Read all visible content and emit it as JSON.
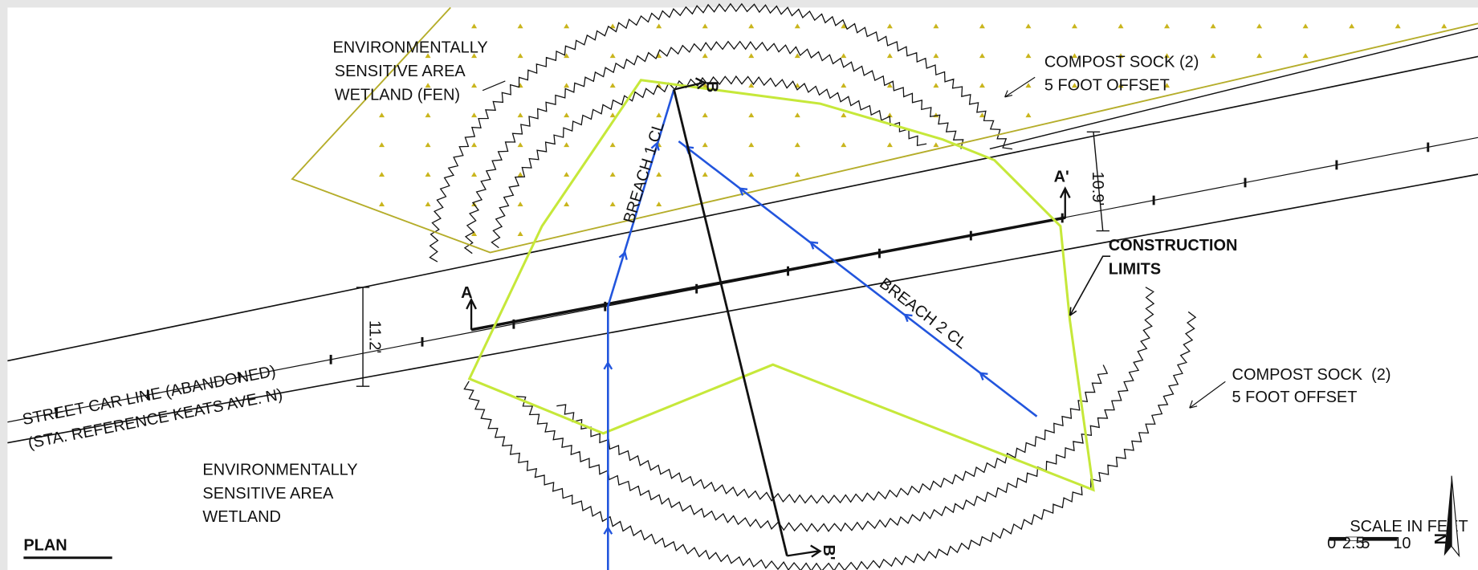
{
  "labels": {
    "fen_area": [
      "ENVIRONMENTALLY",
      "SENSITIVE AREA",
      "WETLAND (FEN)"
    ],
    "compost_sock_top": [
      "COMPOST SOCK (2)",
      "5 FOOT OFFSET"
    ],
    "construction_limits": [
      "CONSTRUCTION",
      "LIMITS"
    ],
    "compost_sock_right": [
      "COMPOST SOCK  (2)",
      "5 FOOT OFFSET"
    ],
    "street_car_line": [
      "STREET CAR LINE (ABANDONED)",
      "(STA. REFERENCE KEATS AVE. N)"
    ],
    "wetland_area": [
      "ENVIRONMENTALLY",
      "SENSITIVE AREA",
      "WETLAND"
    ],
    "breach_1": "BREACH 1 CL",
    "breach_2": "BREACH 2 CL",
    "section_a": "A",
    "section_a_prime": "A'",
    "section_b": "B",
    "section_b_prime": "B'",
    "dim_west": "11.2'",
    "dim_east": "10.9'"
  },
  "title": "PLAN",
  "scale": {
    "title": "SCALE IN FEET",
    "ticks": [
      "0",
      "2.5",
      "5",
      "10"
    ]
  },
  "north": "N"
}
